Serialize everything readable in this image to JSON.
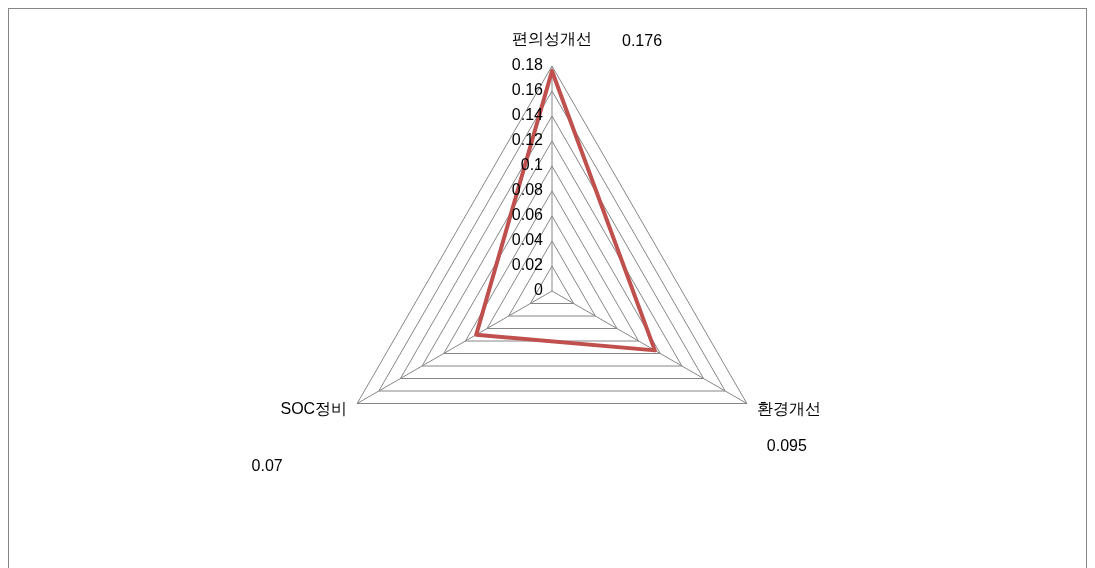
{
  "chart_data": {
    "type": "radar",
    "categories": [
      "편의성개선",
      "환경개선",
      "SOC정비"
    ],
    "series": [
      {
        "color": "#c0504d",
        "values": [
          0.176,
          0.095,
          0.07
        ]
      }
    ],
    "ylim": [
      0,
      0.18
    ],
    "yticks": [
      0,
      0.02,
      0.04,
      0.06,
      0.08,
      0.1,
      0.12,
      0.14,
      0.16,
      0.18
    ],
    "grid": true,
    "annotations": [
      "0.176",
      "0.095",
      "0.07"
    ]
  }
}
